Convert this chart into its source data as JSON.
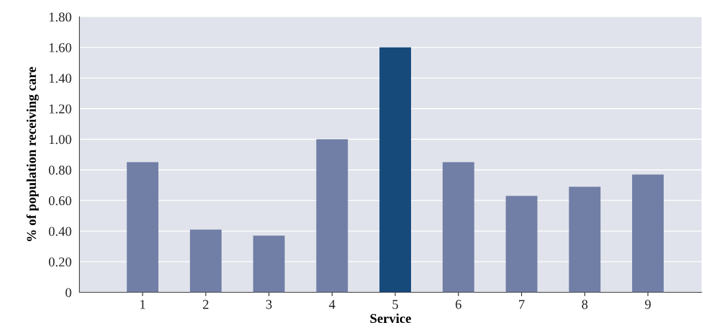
{
  "chart_data": {
    "type": "bar",
    "xlabel": "Service",
    "ylabel": "% of population receiving care",
    "categories": [
      "1",
      "2",
      "3",
      "4",
      "5",
      "6",
      "7",
      "8",
      "9"
    ],
    "values": [
      0.85,
      0.41,
      0.37,
      1.0,
      1.6,
      0.85,
      0.63,
      0.69,
      0.77
    ],
    "colors": [
      "#717ea6",
      "#717ea6",
      "#717ea6",
      "#717ea6",
      "#164a7b",
      "#717ea6",
      "#717ea6",
      "#717ea6",
      "#717ea6"
    ],
    "ylim": [
      0,
      1.8
    ],
    "yticks": [
      {
        "value": 0,
        "label": "0"
      },
      {
        "value": 0.2,
        "label": "0.20"
      },
      {
        "value": 0.4,
        "label": "0.40"
      },
      {
        "value": 0.6,
        "label": "0.60"
      },
      {
        "value": 0.8,
        "label": "0.80"
      },
      {
        "value": 1.0,
        "label": "1.00"
      },
      {
        "value": 1.2,
        "label": "1.20"
      },
      {
        "value": 1.4,
        "label": "1.40"
      },
      {
        "value": 1.6,
        "label": "1.60"
      },
      {
        "value": 1.8,
        "label": "1.80"
      }
    ],
    "grid": "y"
  }
}
